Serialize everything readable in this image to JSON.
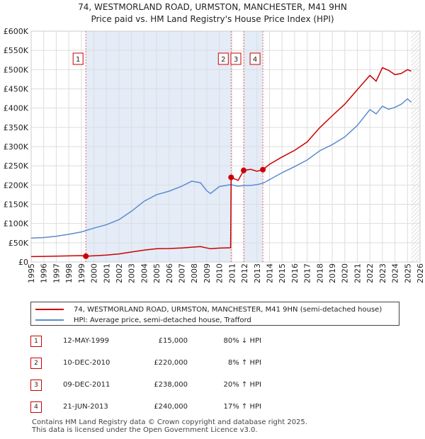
{
  "chart_data": {
    "type": "line",
    "title": "74, WESTMORLAND ROAD, URMSTON, MANCHESTER, M41 9HN",
    "subtitle": "Price paid vs. HM Land Registry's House Price Index (HPI)",
    "xlim": [
      1995,
      2026
    ],
    "ylim": [
      0,
      600000
    ],
    "x_ticks": [
      "1995",
      "1996",
      "1997",
      "1998",
      "1999",
      "2000",
      "2001",
      "2002",
      "2003",
      "2004",
      "2005",
      "2006",
      "2007",
      "2008",
      "2009",
      "2010",
      "2011",
      "2012",
      "2013",
      "2014",
      "2015",
      "2016",
      "2017",
      "2018",
      "2019",
      "2020",
      "2021",
      "2022",
      "2023",
      "2024",
      "2025",
      "2026"
    ],
    "y_ticks": [
      {
        "value": 0,
        "label": "£0"
      },
      {
        "value": 50000,
        "label": "£50K"
      },
      {
        "value": 100000,
        "label": "£100K"
      },
      {
        "value": 150000,
        "label": "£150K"
      },
      {
        "value": 200000,
        "label": "£200K"
      },
      {
        "value": 250000,
        "label": "£250K"
      },
      {
        "value": 300000,
        "label": "£300K"
      },
      {
        "value": 350000,
        "label": "£350K"
      },
      {
        "value": 400000,
        "label": "£400K"
      },
      {
        "value": 450000,
        "label": "£450K"
      },
      {
        "value": 500000,
        "label": "£500K"
      },
      {
        "value": 550000,
        "label": "£550K"
      },
      {
        "value": 600000,
        "label": "£600K"
      }
    ],
    "grid": true,
    "shaded_ranges": [
      [
        1999.36,
        2010.94
      ],
      [
        2011.94,
        2013.47
      ]
    ],
    "projection_start": 2025.3,
    "series": [
      {
        "name": "74, WESTMORLAND ROAD, URMSTON, MANCHESTER, M41 9HN (semi-detached house)",
        "color": "#cc0000",
        "x": [
          1995.0,
          1996.0,
          1997.0,
          1998.0,
          1999.0,
          1999.36,
          2000.0,
          2001.0,
          2002.0,
          2003.0,
          2004.0,
          2005.0,
          2006.0,
          2007.0,
          2007.8,
          2008.5,
          2009.0,
          2009.3,
          2010.0,
          2010.9,
          2010.94,
          2011.5,
          2011.94,
          2012.5,
          2013.0,
          2013.47,
          2014.0,
          2015.0,
          2016.0,
          2017.0,
          2018.0,
          2019.0,
          2020.0,
          2021.0,
          2022.0,
          2022.5,
          2023.0,
          2023.5,
          2024.0,
          2024.5,
          2025.0,
          2025.3
        ],
        "y": [
          14000,
          14600,
          15200,
          15800,
          16500,
          15000,
          16200,
          18000,
          21000,
          26000,
          31000,
          34500,
          35000,
          36500,
          38500,
          40000,
          36500,
          34500,
          36000,
          37000,
          220000,
          212000,
          238000,
          241000,
          236000,
          240000,
          254000,
          273000,
          290000,
          312000,
          349000,
          380000,
          410000,
          448000,
          485000,
          470000,
          505000,
          498000,
          487000,
          490000,
          500000,
          496000
        ]
      },
      {
        "name": "HPI: Average price, semi-detached house, Trafford",
        "color": "#5b8bd0",
        "x": [
          1995.0,
          1996.0,
          1997.0,
          1998.0,
          1999.0,
          2000.0,
          2001.0,
          2002.0,
          2003.0,
          2004.0,
          2005.0,
          2006.0,
          2007.0,
          2007.8,
          2008.5,
          2009.0,
          2009.3,
          2010.0,
          2010.9,
          2011.5,
          2012.0,
          2012.5,
          2013.0,
          2013.5,
          2014.0,
          2015.0,
          2016.0,
          2017.0,
          2018.0,
          2019.0,
          2020.0,
          2021.0,
          2022.0,
          2022.5,
          2023.0,
          2023.5,
          2024.0,
          2024.5,
          2025.0,
          2025.3
        ],
        "y": [
          62000,
          63500,
          67000,
          72000,
          78000,
          88000,
          97000,
          110000,
          132000,
          158000,
          175000,
          184000,
          197000,
          210000,
          206000,
          185000,
          178000,
          196000,
          201000,
          197000,
          199000,
          199000,
          201000,
          205000,
          214000,
          232000,
          248000,
          265000,
          289000,
          305000,
          325000,
          355000,
          396000,
          385000,
          405000,
          397000,
          402000,
          410000,
          424000,
          415000
        ]
      }
    ],
    "markers": [
      {
        "label": "1",
        "x": 1999.36,
        "y": 15000
      },
      {
        "label": "2",
        "x": 2010.94,
        "y": 220000
      },
      {
        "label": "3",
        "x": 2011.94,
        "y": 238000
      },
      {
        "label": "4",
        "x": 2013.47,
        "y": 240000
      }
    ]
  },
  "legend": {
    "property_label": "74, WESTMORLAND ROAD, URMSTON, MANCHESTER, M41 9HN (semi-detached house)",
    "hpi_label": "HPI: Average price, semi-detached house, Trafford"
  },
  "sales": [
    {
      "num": "1",
      "date": "12-MAY-1999",
      "price": "£15,000",
      "hpi": "80% ↓ HPI"
    },
    {
      "num": "2",
      "date": "10-DEC-2010",
      "price": "£220,000",
      "hpi": "8% ↑ HPI"
    },
    {
      "num": "3",
      "date": "09-DEC-2011",
      "price": "£238,000",
      "hpi": "20% ↑ HPI"
    },
    {
      "num": "4",
      "date": "21-JUN-2013",
      "price": "£240,000",
      "hpi": "17% ↑ HPI"
    }
  ],
  "footer": {
    "line1": "Contains HM Land Registry data © Crown copyright and database right 2025.",
    "line2": "This data is licensed under the Open Government Licence v3.0."
  }
}
